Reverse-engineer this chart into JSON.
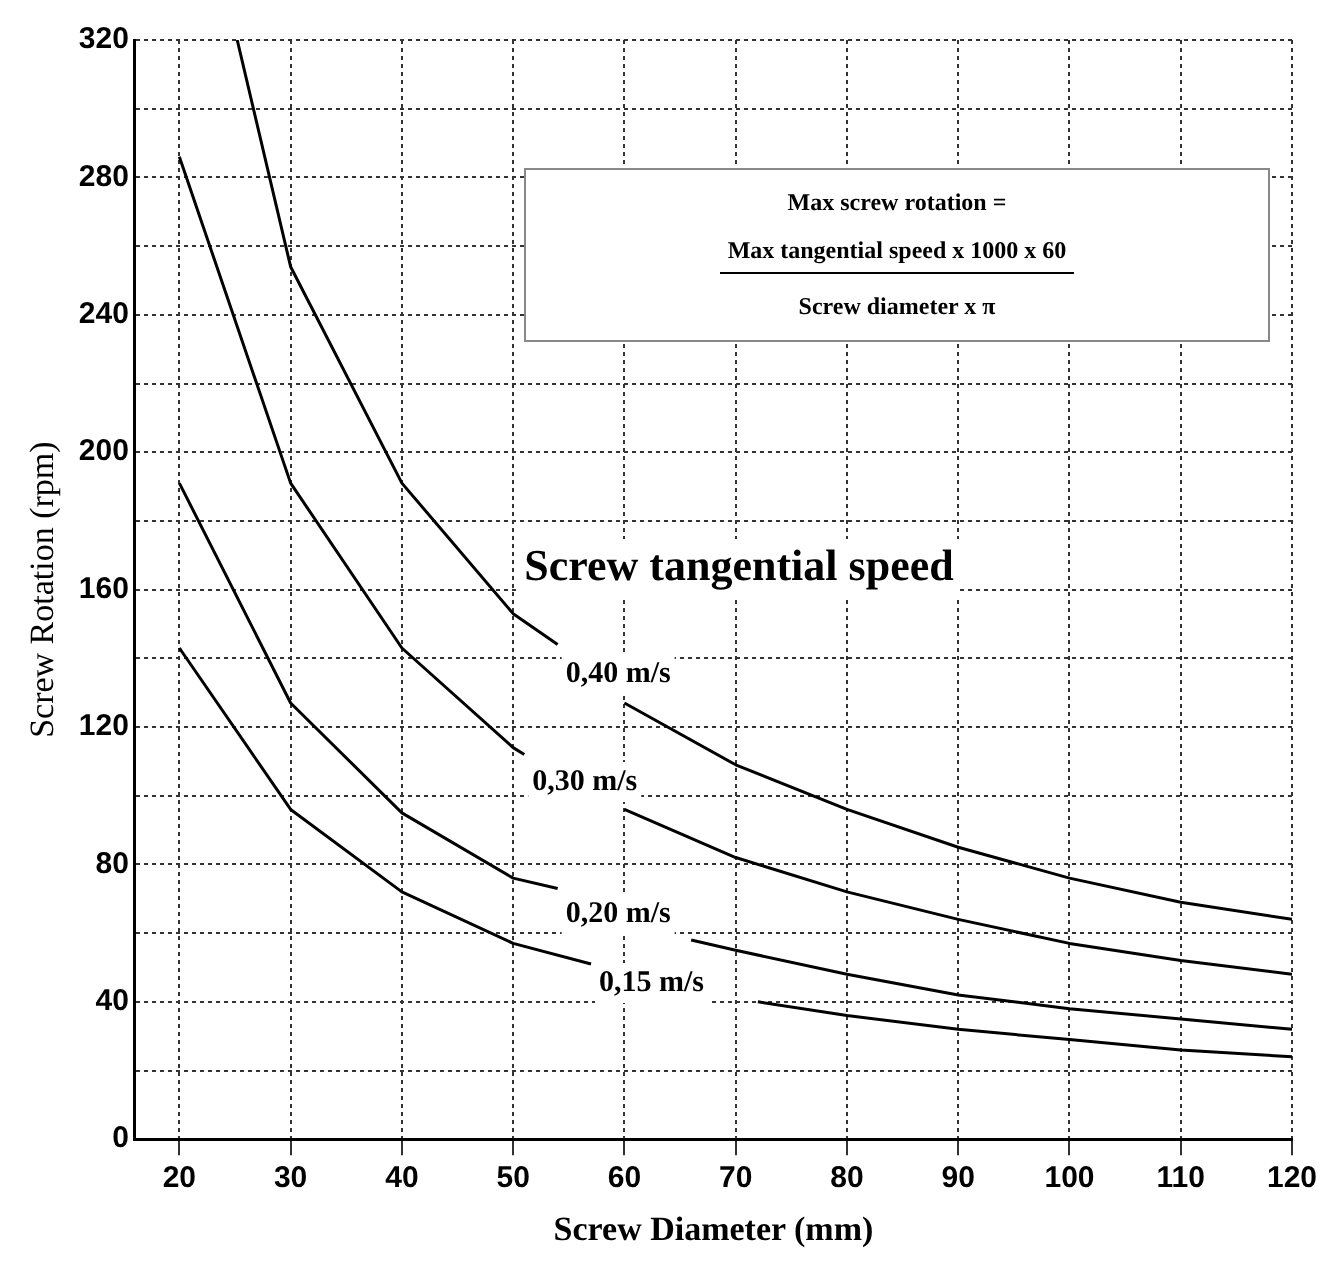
{
  "chart_data": {
    "type": "line",
    "xlabel": "Screw Diameter (mm)",
    "ylabel": "Screw Rotation (rpm)",
    "legend_title": "Screw tangential speed",
    "annotations": [
      "Max screw rotation =",
      "Max tangential speed  x  1000  x  60",
      "Screw diameter  x  π"
    ],
    "xlim": [
      16,
      120
    ],
    "xticks": [
      20,
      30,
      40,
      50,
      60,
      70,
      80,
      90,
      100,
      110,
      120
    ],
    "ylim": [
      0,
      320
    ],
    "yticks": [
      0,
      40,
      80,
      120,
      160,
      200,
      240,
      280,
      320
    ],
    "grid": true,
    "legend": false,
    "marker": "none",
    "line_style": "solid",
    "series": [
      {
        "name": "0,40 m/s",
        "color": "#000000",
        "x": [
          25.2,
          30,
          40,
          50,
          54,
          57,
          60,
          70,
          80,
          90,
          100,
          110,
          120
        ],
        "values": [
          320,
          254,
          191,
          153,
          144,
          null,
          127,
          109,
          96,
          85,
          76,
          69,
          64
        ]
      },
      {
        "name": "0,30 m/s",
        "color": "#000000",
        "x": [
          20,
          30,
          40,
          50,
          51,
          55,
          60,
          70,
          80,
          90,
          100,
          110,
          120
        ],
        "values": [
          286,
          191,
          143,
          114,
          112,
          null,
          96,
          82,
          72,
          64,
          57,
          52,
          48
        ]
      },
      {
        "name": "0,20 m/s",
        "color": "#000000",
        "x": [
          20,
          30,
          40,
          50,
          54,
          60,
          66,
          70,
          80,
          90,
          100,
          110,
          120
        ],
        "values": [
          191,
          127,
          95,
          76,
          73,
          null,
          58,
          55,
          48,
          42,
          38,
          35,
          32
        ]
      },
      {
        "name": "0,15 m/s",
        "color": "#000000",
        "x": [
          20,
          30,
          40,
          50,
          57,
          64,
          72,
          80,
          90,
          100,
          110,
          120
        ],
        "values": [
          143,
          96,
          72,
          57,
          51,
          null,
          40,
          36,
          32,
          29,
          26,
          24
        ]
      }
    ]
  }
}
